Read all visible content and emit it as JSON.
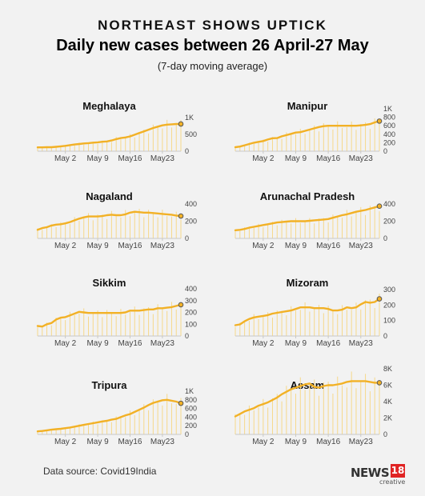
{
  "header": {
    "kicker": "NORTHEAST SHOWS UPTICK",
    "title": "Daily new cases between 26 April-27 May",
    "subtitle": "(7-day moving average)"
  },
  "footer": {
    "source": "Data source: Covid19India",
    "logo_text": "NEWS",
    "logo_badge": "18",
    "logo_sub": "creative"
  },
  "colors": {
    "line": "#f2b126",
    "bars": "#f6d88a",
    "marker_fill": "#f2b126",
    "marker_stroke": "#555555",
    "baseline": "#c8c8c8",
    "axis_text": "#444444"
  },
  "chart_data": [
    {
      "type": "line",
      "title": "Meghalaya",
      "x_tick_labels": [
        "May 2",
        "May 9",
        "May16",
        "May23"
      ],
      "y_tick_labels": [
        "0",
        "500",
        "1K"
      ],
      "ylim": [
        0,
        1000
      ],
      "x": [
        "Apr 26",
        "Apr 27",
        "Apr 28",
        "Apr 29",
        "Apr 30",
        "May 1",
        "May 2",
        "May 3",
        "May 4",
        "May 5",
        "May 6",
        "May 7",
        "May 8",
        "May 9",
        "May 10",
        "May 11",
        "May 12",
        "May 13",
        "May 14",
        "May 15",
        "May 16",
        "May 17",
        "May 18",
        "May 19",
        "May 20",
        "May 21",
        "May 22",
        "May 23",
        "May 24",
        "May 25",
        "May 26",
        "May 27"
      ],
      "values": [
        115,
        115,
        118,
        120,
        130,
        145,
        160,
        180,
        200,
        215,
        230,
        240,
        255,
        265,
        280,
        290,
        320,
        360,
        390,
        410,
        440,
        490,
        540,
        590,
        640,
        690,
        730,
        770,
        790,
        800,
        810,
        810
      ]
    },
    {
      "type": "line",
      "title": "Manipur",
      "x_tick_labels": [
        "May 2",
        "May 9",
        "May16",
        "May23"
      ],
      "y_tick_labels": [
        "0",
        "200",
        "400",
        "600",
        "800",
        "1K"
      ],
      "ylim": [
        0,
        1000
      ],
      "x": [
        "Apr 26",
        "Apr 27",
        "Apr 28",
        "Apr 29",
        "Apr 30",
        "May 1",
        "May 2",
        "May 3",
        "May 4",
        "May 5",
        "May 6",
        "May 7",
        "May 8",
        "May 9",
        "May 10",
        "May 11",
        "May 12",
        "May 13",
        "May 14",
        "May 15",
        "May 16",
        "May 17",
        "May 18",
        "May 19",
        "May 20",
        "May 21",
        "May 22",
        "May 23",
        "May 24",
        "May 25",
        "May 26",
        "May 27"
      ],
      "values": [
        95,
        110,
        140,
        170,
        200,
        220,
        240,
        275,
        305,
        310,
        350,
        380,
        410,
        440,
        450,
        480,
        510,
        540,
        570,
        590,
        600,
        600,
        600,
        600,
        600,
        600,
        600,
        610,
        620,
        640,
        680,
        710
      ]
    },
    {
      "type": "line",
      "title": "Nagaland",
      "x_tick_labels": [
        "May 2",
        "May 9",
        "May16",
        "May23"
      ],
      "y_tick_labels": [
        "0",
        "200",
        "400"
      ],
      "ylim": [
        0,
        400
      ],
      "x": [
        "Apr 26",
        "Apr 27",
        "Apr 28",
        "Apr 29",
        "Apr 30",
        "May 1",
        "May 2",
        "May 3",
        "May 4",
        "May 5",
        "May 6",
        "May 7",
        "May 8",
        "May 9",
        "May 10",
        "May 11",
        "May 12",
        "May 13",
        "May 14",
        "May 15",
        "May 16",
        "May 17",
        "May 18",
        "May 19",
        "May 20",
        "May 21",
        "May 22",
        "May 23",
        "May 24",
        "May 25",
        "May 26",
        "May 27"
      ],
      "values": [
        100,
        120,
        130,
        150,
        160,
        165,
        175,
        190,
        210,
        230,
        245,
        255,
        255,
        255,
        260,
        270,
        275,
        270,
        270,
        280,
        300,
        310,
        305,
        300,
        300,
        295,
        290,
        285,
        280,
        275,
        265,
        260
      ]
    },
    {
      "type": "line",
      "title": "Arunachal Pradesh",
      "x_tick_labels": [
        "May 2",
        "May 9",
        "May16",
        "May23"
      ],
      "y_tick_labels": [
        "0",
        "200",
        "400"
      ],
      "ylim": [
        0,
        400
      ],
      "x": [
        "Apr 26",
        "Apr 27",
        "Apr 28",
        "Apr 29",
        "Apr 30",
        "May 1",
        "May 2",
        "May 3",
        "May 4",
        "May 5",
        "May 6",
        "May 7",
        "May 8",
        "May 9",
        "May 10",
        "May 11",
        "May 12",
        "May 13",
        "May 14",
        "May 15",
        "May 16",
        "May 17",
        "May 18",
        "May 19",
        "May 20",
        "May 21",
        "May 22",
        "May 23",
        "May 24",
        "May 25",
        "May 26",
        "May 27"
      ],
      "values": [
        95,
        100,
        110,
        125,
        135,
        145,
        155,
        165,
        175,
        185,
        190,
        195,
        200,
        200,
        200,
        200,
        205,
        210,
        215,
        220,
        225,
        240,
        255,
        270,
        280,
        295,
        310,
        320,
        330,
        345,
        360,
        375
      ]
    },
    {
      "type": "line",
      "title": "Sikkim",
      "x_tick_labels": [
        "May 2",
        "May 9",
        "May16",
        "May23"
      ],
      "y_tick_labels": [
        "0",
        "100",
        "200",
        "300",
        "400"
      ],
      "ylim": [
        0,
        400
      ],
      "x": [
        "Apr 26",
        "Apr 27",
        "Apr 28",
        "Apr 29",
        "Apr 30",
        "May 1",
        "May 2",
        "May 3",
        "May 4",
        "May 5",
        "May 6",
        "May 7",
        "May 8",
        "May 9",
        "May 10",
        "May 11",
        "May 12",
        "May 13",
        "May 14",
        "May 15",
        "May 16",
        "May 17",
        "May 18",
        "May 19",
        "May 20",
        "May 21",
        "May 22",
        "May 23",
        "May 24",
        "May 25",
        "May 26",
        "May 27"
      ],
      "values": [
        85,
        80,
        100,
        110,
        140,
        155,
        160,
        175,
        190,
        205,
        200,
        195,
        195,
        195,
        195,
        195,
        195,
        195,
        195,
        200,
        215,
        215,
        215,
        220,
        225,
        225,
        235,
        235,
        240,
        245,
        255,
        265
      ]
    },
    {
      "type": "line",
      "title": "Mizoram",
      "x_tick_labels": [
        "May 2",
        "May 9",
        "May16",
        "May23"
      ],
      "y_tick_labels": [
        "0",
        "100",
        "200",
        "300"
      ],
      "ylim": [
        0,
        300
      ],
      "x": [
        "Apr 26",
        "Apr 27",
        "Apr 28",
        "Apr 29",
        "Apr 30",
        "May 1",
        "May 2",
        "May 3",
        "May 4",
        "May 5",
        "May 6",
        "May 7",
        "May 8",
        "May 9",
        "May 10",
        "May 11",
        "May 12",
        "May 13",
        "May 14",
        "May 15",
        "May 16",
        "May 17",
        "May 18",
        "May 19",
        "May 20",
        "May 21",
        "May 22",
        "May 23",
        "May 24",
        "May 25",
        "May 26",
        "May 27"
      ],
      "values": [
        70,
        75,
        95,
        110,
        120,
        125,
        130,
        135,
        145,
        150,
        155,
        160,
        165,
        175,
        185,
        185,
        185,
        180,
        180,
        180,
        175,
        165,
        165,
        170,
        185,
        180,
        185,
        205,
        220,
        215,
        220,
        240
      ]
    },
    {
      "type": "line",
      "title": "Tripura",
      "x_tick_labels": [
        "May 2",
        "May 9",
        "May16",
        "May23"
      ],
      "y_tick_labels": [
        "0",
        "200",
        "400",
        "600",
        "800",
        "1K"
      ],
      "ylim": [
        0,
        1000
      ],
      "x": [
        "Apr 26",
        "Apr 27",
        "Apr 28",
        "Apr 29",
        "Apr 30",
        "May 1",
        "May 2",
        "May 3",
        "May 4",
        "May 5",
        "May 6",
        "May 7",
        "May 8",
        "May 9",
        "May 10",
        "May 11",
        "May 12",
        "May 13",
        "May 14",
        "May 15",
        "May 16",
        "May 17",
        "May 18",
        "May 19",
        "May 20",
        "May 21",
        "May 22",
        "May 23",
        "May 24",
        "May 25",
        "May 26",
        "May 27"
      ],
      "values": [
        70,
        80,
        95,
        110,
        120,
        130,
        145,
        160,
        180,
        200,
        220,
        240,
        260,
        280,
        300,
        315,
        340,
        360,
        400,
        440,
        470,
        520,
        570,
        620,
        680,
        730,
        760,
        790,
        800,
        780,
        760,
        720
      ]
    },
    {
      "type": "line",
      "title": "Assam",
      "x_tick_labels": [
        "May 2",
        "May 9",
        "May16",
        "May23"
      ],
      "y_tick_labels": [
        "0",
        "2K",
        "4K",
        "6K",
        "8K"
      ],
      "ylim": [
        0,
        8000
      ],
      "x": [
        "Apr 26",
        "Apr 27",
        "Apr 28",
        "Apr 29",
        "Apr 30",
        "May 1",
        "May 2",
        "May 3",
        "May 4",
        "May 5",
        "May 6",
        "May 7",
        "May 8",
        "May 9",
        "May 10",
        "May 11",
        "May 12",
        "May 13",
        "May 14",
        "May 15",
        "May 16",
        "May 17",
        "May 18",
        "May 19",
        "May 20",
        "May 21",
        "May 22",
        "May 23",
        "May 24",
        "May 25",
        "May 26",
        "May 27"
      ],
      "values": [
        2200,
        2500,
        2800,
        3000,
        3200,
        3500,
        3700,
        3900,
        4200,
        4500,
        4900,
        5200,
        5500,
        5700,
        5900,
        6100,
        6200,
        5800,
        5700,
        5900,
        6000,
        6000,
        6100,
        6200,
        6400,
        6500,
        6500,
        6500,
        6500,
        6400,
        6300,
        6300
      ]
    }
  ]
}
